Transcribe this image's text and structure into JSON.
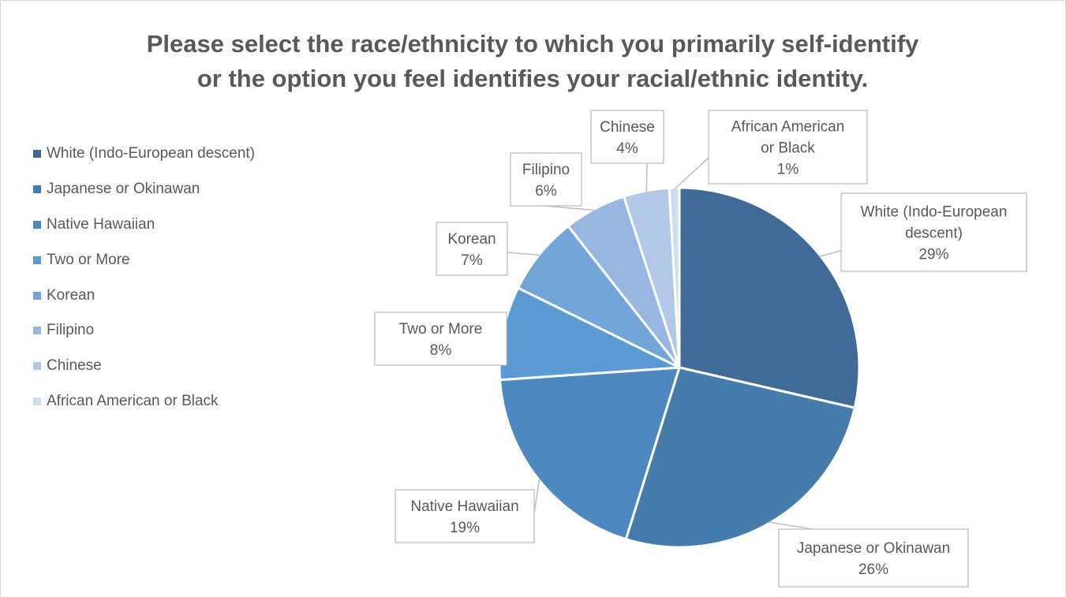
{
  "chart_data": {
    "type": "pie",
    "title_lines": [
      "Please select the race/ethnicity to which you primarily self-identify",
      "or the option you feel identifies your racial/ethnic identity."
    ],
    "legend_position": "left",
    "slices": [
      {
        "label": "White (Indo-European descent)",
        "callout": [
          "White (Indo-European",
          "descent)"
        ],
        "pct_label": "29%",
        "value": 28.6,
        "color": "#3f6b96"
      },
      {
        "label": "Japanese or Okinawan",
        "callout": [
          "Japanese or Okinawan"
        ],
        "pct_label": "26%",
        "value": 26.2,
        "color": "#467cac"
      },
      {
        "label": "Native Hawaiian",
        "callout": [
          "Native Hawaiian"
        ],
        "pct_label": "19%",
        "value": 19.1,
        "color": "#4d89c0"
      },
      {
        "label": "Two or More",
        "callout": [
          "Two or More"
        ],
        "pct_label": "8%",
        "value": 8.4,
        "color": "#5b9ad3"
      },
      {
        "label": "Korean",
        "callout": [
          "Korean"
        ],
        "pct_label": "7%",
        "value": 7.1,
        "color": "#74a5d9"
      },
      {
        "label": "Filipino",
        "callout": [
          "Filipino"
        ],
        "pct_label": "6%",
        "value": 5.6,
        "color": "#98b7e0"
      },
      {
        "label": "Chinese",
        "callout": [
          "Chinese"
        ],
        "pct_label": "4%",
        "value": 4.1,
        "color": "#b3c8e6"
      },
      {
        "label": "African American or Black",
        "callout": [
          "African American",
          "or Black"
        ],
        "pct_label": "1%",
        "value": 0.9,
        "color": "#cfdcef"
      }
    ]
  }
}
